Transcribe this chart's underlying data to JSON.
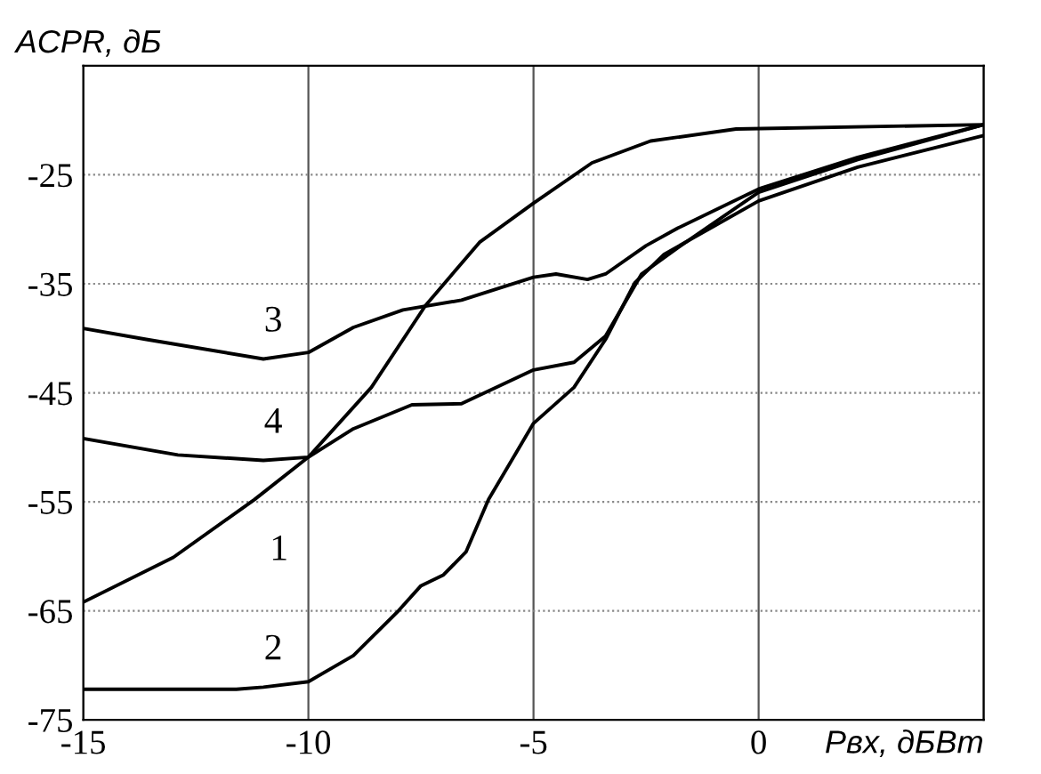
{
  "chart_data": {
    "type": "line",
    "xlabel": "Pвх, дБВт",
    "ylabel": "ACPR, дБ",
    "xlim": [
      -15,
      5
    ],
    "ylim": [
      -75,
      -15
    ],
    "xticks": [
      -15,
      -10,
      -5,
      0,
      {
        "value": 5,
        "label": null
      }
    ],
    "yticks": [
      -75,
      -65,
      -55,
      -45,
      -35,
      -25
    ],
    "grid": true,
    "marker": "none",
    "line_style": "solid",
    "series": [
      {
        "name": "1",
        "color": "#000000",
        "x": [
          -15,
          -13,
          -11.2,
          -10,
          -8.6,
          -7.4,
          -6.2,
          -5,
          -3.7,
          -2.4,
          -0.5,
          5
        ],
        "values": [
          -64.2,
          -60.1,
          -54.8,
          -50.9,
          -44.5,
          -37,
          -31.2,
          -27.6,
          -23.9,
          -21.9,
          -20.8,
          -20.4
        ]
      },
      {
        "name": "2",
        "color": "#000000",
        "x": [
          -15,
          -11.6,
          -11,
          -10,
          -9,
          -8,
          -7.5,
          -7,
          -6.5,
          -6,
          -5,
          -4.1,
          -3.4,
          -2.75,
          -2.1,
          0,
          2.2,
          5
        ],
        "values": [
          -72.2,
          -72.2,
          -72,
          -71.5,
          -69.1,
          -65,
          -62.7,
          -61.7,
          -59.6,
          -54.8,
          -47.8,
          -44.5,
          -40.1,
          -34.9,
          -32.3,
          -27.4,
          -24.3,
          -21.4
        ]
      },
      {
        "name": "3",
        "color": "#000000",
        "x": [
          -15,
          -13.6,
          -11,
          -10,
          -9,
          -7.9,
          -6.6,
          -5,
          -4.5,
          -3.8,
          -3.4,
          -2.5,
          -1.8,
          0,
          2.2,
          5
        ],
        "values": [
          -39.1,
          -40.1,
          -41.9,
          -41.3,
          -39,
          -37.4,
          -36.5,
          -34.4,
          -34.1,
          -34.6,
          -34.1,
          -31.5,
          -29.9,
          -26.3,
          -23.4,
          -20.4
        ]
      },
      {
        "name": "4",
        "color": "#000000",
        "x": [
          -15,
          -12.9,
          -11,
          -10,
          -9,
          -7.7,
          -6.6,
          -5,
          -4.1,
          -3.4,
          -2.6,
          -1.8,
          0,
          2.2,
          5
        ],
        "values": [
          -49.2,
          -50.7,
          -51.2,
          -50.9,
          -48.3,
          -46.1,
          -46,
          -42.9,
          -42.2,
          -39.8,
          -34.1,
          -31.7,
          -26.6,
          -23.6,
          -20.4
        ]
      }
    ]
  }
}
